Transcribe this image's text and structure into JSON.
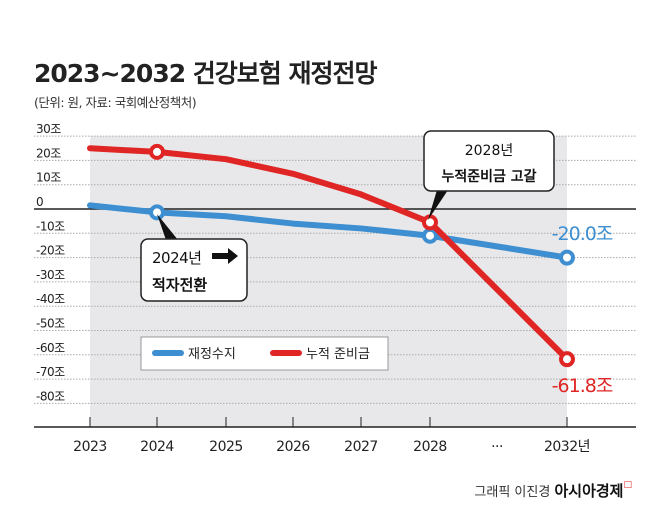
{
  "chart_data": {
    "type": "line",
    "title": "2023~2032 건강보험 재정전망",
    "subtitle": "(단위: 원, 자료: 국회예산정책처)",
    "categories": [
      "2023",
      "2024",
      "2025",
      "2026",
      "2027",
      "2028",
      "···",
      "2032년"
    ],
    "y_ticks": [
      "30조",
      "20조",
      "10조",
      "0",
      "-10조",
      "-20조",
      "-30조",
      "-40조",
      "-50조",
      "-60조",
      "-70조",
      "-80조"
    ],
    "ylim": [
      -80,
      30
    ],
    "grid": true,
    "legend_position": "bottom-left",
    "series": [
      {
        "name": "재정수지",
        "color": "#3d8fd1",
        "values": [
          1.5,
          -1.4,
          -3,
          -6,
          -8,
          -11,
          null,
          -20.0
        ]
      },
      {
        "name": "누적 준비금",
        "color": "#e02525",
        "values": [
          25,
          23.5,
          20.5,
          14.5,
          6,
          -5.5,
          null,
          -61.8
        ]
      }
    ],
    "annotations": [
      {
        "line1": "2024년",
        "line2": "적자전환"
      },
      {
        "line1": "2028년",
        "line2": "누적준비금 고갈"
      },
      {
        "text": "-20.0조",
        "color": "#3d8fd1"
      },
      {
        "text": "-61.8조",
        "color": "#e02525"
      }
    ]
  },
  "credit": {
    "author": "그래픽 이진경",
    "brand": "아시아경제"
  }
}
